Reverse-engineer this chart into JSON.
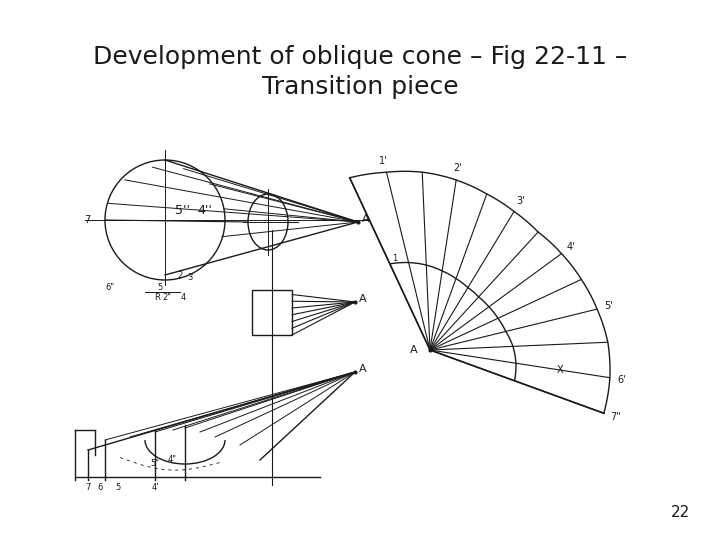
{
  "title_line1": "Development of oblique cone – Fig 22-11 –",
  "title_line2": "Transition piece",
  "title_fontsize": 18,
  "page_number": "22",
  "bg_color": "#ffffff",
  "line_color": "#1a1a1a",
  "line_width": 1.0
}
